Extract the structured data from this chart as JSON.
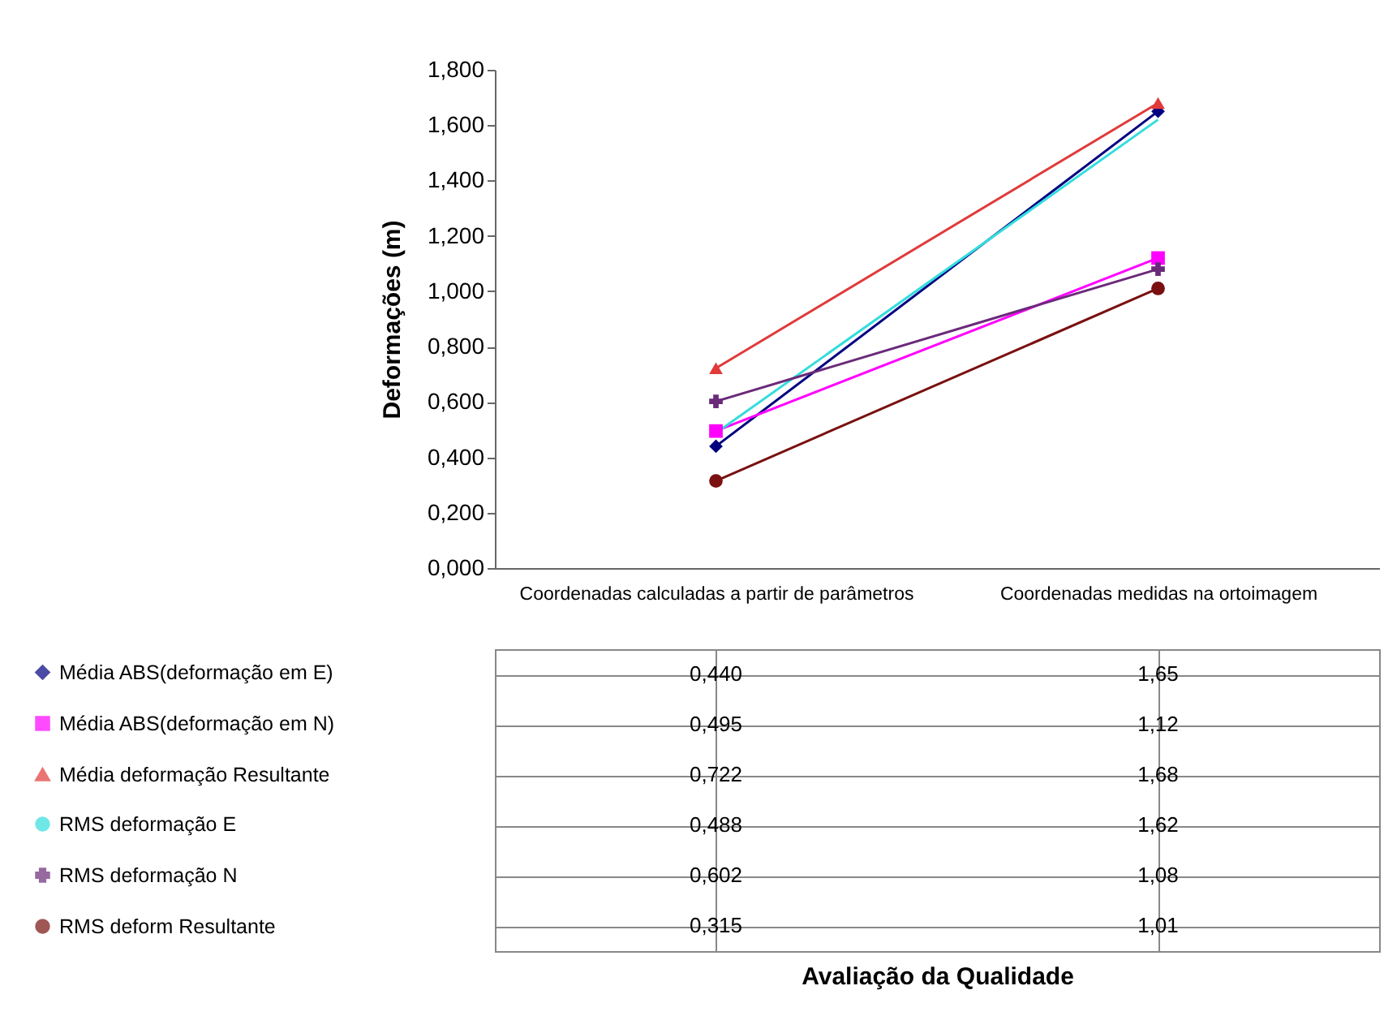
{
  "chart_data": {
    "type": "line",
    "annotations": [
      "Avaliação da Qualidade"
    ],
    "ylabel": "Deformações (m)",
    "categories": [
      "Coordenadas calculadas a partir de parâmetros",
      "Coordenadas medidas na ortoimagem"
    ],
    "series": [
      {
        "name": "Média ABS(deformação em E)",
        "color": "#000080",
        "marker": "diamond",
        "values": [
          0.44,
          1.65
        ],
        "value_labels": [
          "0,440",
          "1,65"
        ]
      },
      {
        "name": "Média ABS(deformação em N)",
        "color": "#ff00ff",
        "marker": "square",
        "values": [
          0.495,
          1.12
        ],
        "value_labels": [
          "0,495",
          "1,12"
        ]
      },
      {
        "name": "Média deformação Resultante",
        "color": "#e03a3a",
        "marker": "triangle",
        "values": [
          0.722,
          1.68
        ],
        "value_labels": [
          "0,722",
          "1,68"
        ]
      },
      {
        "name": "RMS deformação E",
        "color": "#33dddd",
        "marker": "none",
        "values": [
          0.488,
          1.62
        ],
        "value_labels": [
          "0,488",
          "1,62"
        ]
      },
      {
        "name": "RMS deformação N",
        "color": "#6a2a7a",
        "marker": "cross",
        "values": [
          0.602,
          1.08
        ],
        "value_labels": [
          "0,602",
          "1,08"
        ]
      },
      {
        "name": "RMS deform Resultante",
        "color": "#7a1010",
        "marker": "circle",
        "values": [
          0.315,
          1.01
        ],
        "value_labels": [
          "0,315",
          "1,01"
        ]
      }
    ],
    "ylim": [
      0,
      1.8
    ],
    "yticks": [
      {
        "value": 0,
        "label": "0,000"
      },
      {
        "value": 0.2,
        "label": "0,200"
      },
      {
        "value": 0.4,
        "label": "0,400"
      },
      {
        "value": 0.6,
        "label": "0,600"
      },
      {
        "value": 0.8,
        "label": "0,800"
      },
      {
        "value": 1,
        "label": "1,000"
      },
      {
        "value": 1.2,
        "label": "1,200"
      },
      {
        "value": 1.4,
        "label": "1,400"
      },
      {
        "value": 1.6,
        "label": "1,600"
      },
      {
        "value": 1.8,
        "label": "1,800"
      }
    ],
    "data_labels": true,
    "legend": "bottom left",
    "grid": false
  }
}
